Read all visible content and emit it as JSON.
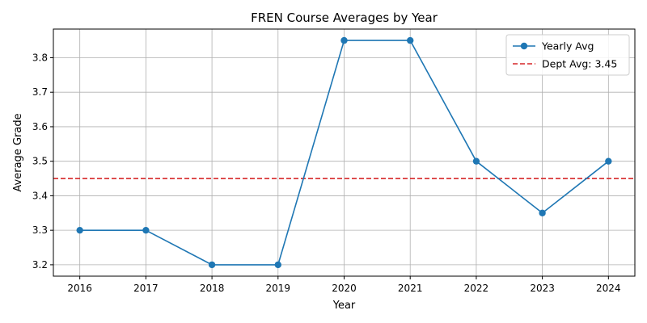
{
  "chart_data": {
    "type": "line",
    "title": "FREN Course Averages by Year",
    "xlabel": "Year",
    "ylabel": "Average Grade",
    "x": [
      2016,
      2017,
      2018,
      2019,
      2020,
      2021,
      2022,
      2023,
      2024
    ],
    "x_tick_labels": [
      "2016",
      "2017",
      "2018",
      "2019",
      "2020",
      "2021",
      "2022",
      "2023",
      "2024"
    ],
    "xlim": [
      2015.6,
      2024.4
    ],
    "ylim": [
      3.167,
      3.883
    ],
    "y_ticks": [
      3.2,
      3.3,
      3.4,
      3.5,
      3.6,
      3.7,
      3.8
    ],
    "y_tick_labels": [
      "3.2",
      "3.3",
      "3.4",
      "3.5",
      "3.6",
      "3.7",
      "3.8"
    ],
    "grid": true,
    "legend_position": "top-right",
    "series": [
      {
        "name": "Yearly Avg",
        "values": [
          3.3,
          3.3,
          3.2,
          3.2,
          3.85,
          3.85,
          3.5,
          3.35,
          3.5
        ],
        "color": "#1f77b4",
        "style": "solid",
        "marker": "circle"
      }
    ],
    "reference_lines": [
      {
        "name": "Dept Avg: 3.45",
        "y": 3.45,
        "color": "#d62728",
        "style": "dashed"
      }
    ]
  }
}
